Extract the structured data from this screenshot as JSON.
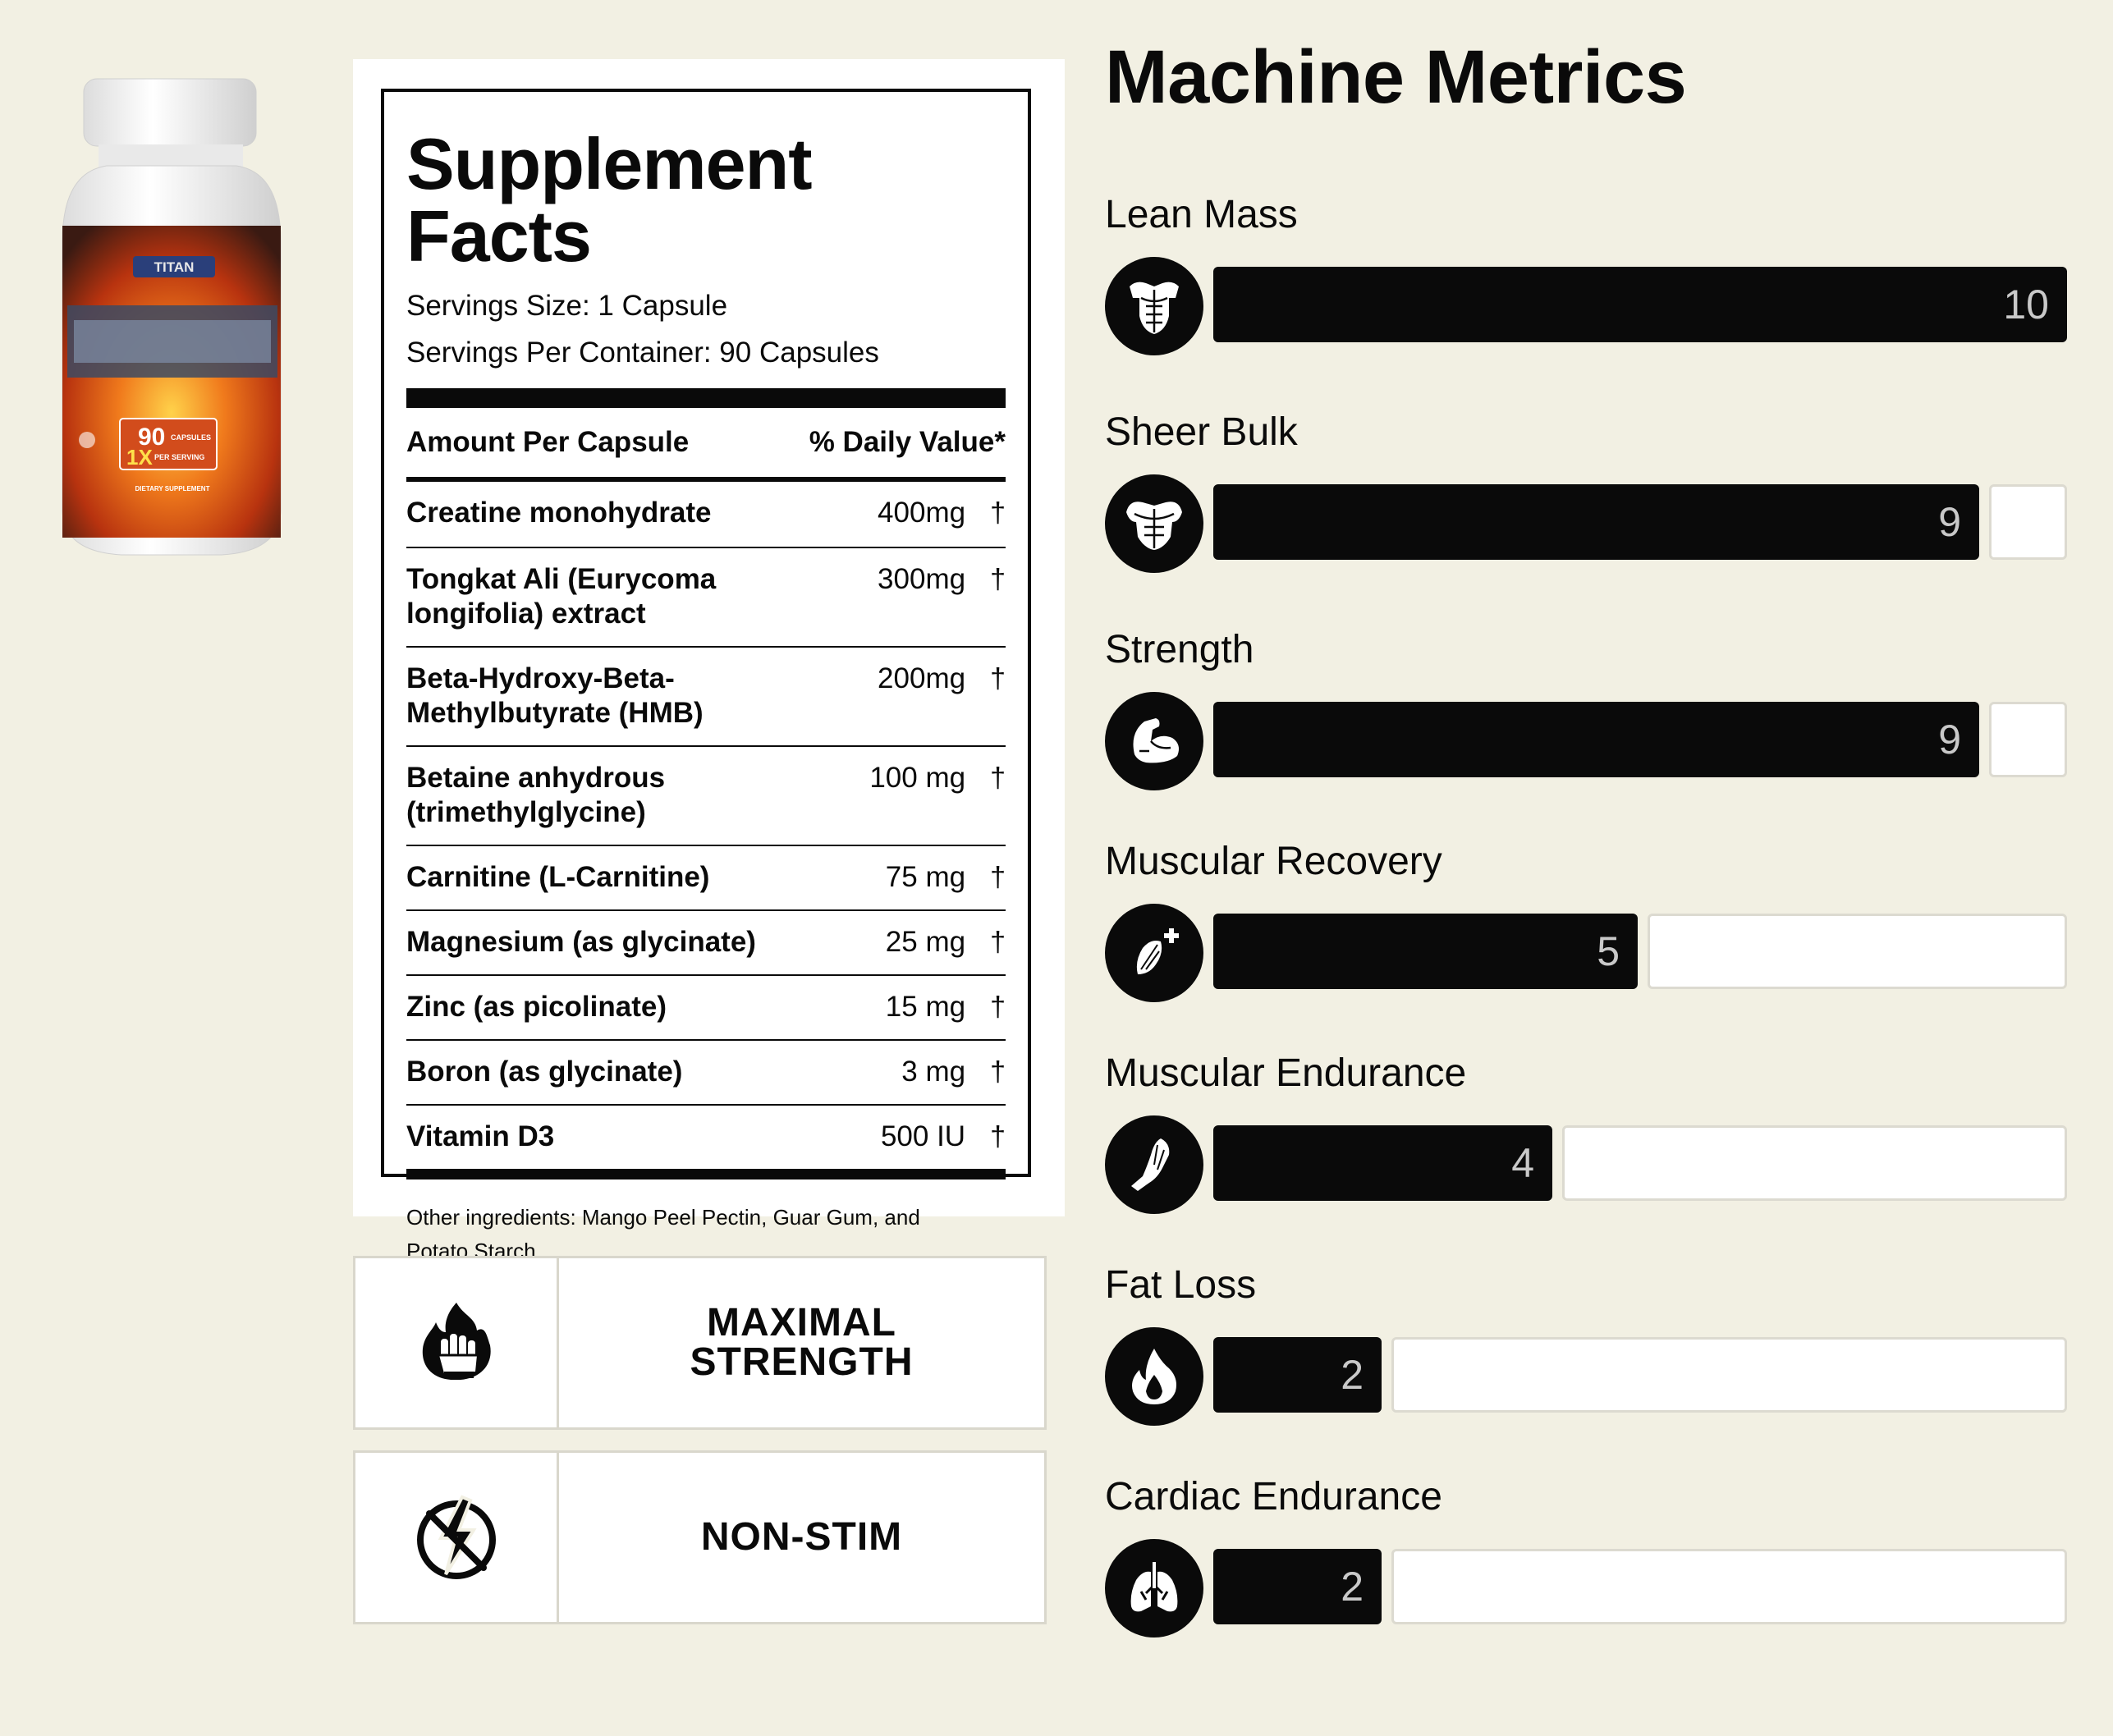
{
  "product": {
    "brand_label": "TITAN",
    "capsule_badge": "90",
    "capsule_badge_unit": "CAPSULES",
    "dose_badge": "1X",
    "dose_badge_unit": "PER SERVING",
    "bottle_footer": "DIETARY SUPPLEMENT"
  },
  "facts": {
    "title": "Supplement Facts",
    "serving_size": "Servings Size: 1 Capsule",
    "servings_per_container": "Servings Per Container: 90 Capsules",
    "col_left": "Amount Per Capsule",
    "col_right": "% Daily Value*",
    "ingredients": [
      {
        "name": "Creatine monohydrate",
        "amount": "400mg",
        "dv": "†"
      },
      {
        "name": "Tongkat Ali (Eurycoma longifolia) extract",
        "amount": "300mg",
        "dv": "†"
      },
      {
        "name": "Beta-Hydroxy-Beta-Methylbutyrate (HMB)",
        "amount": "200mg",
        "dv": "†"
      },
      {
        "name": "Betaine anhydrous (trimethylglycine)",
        "amount": "100 mg",
        "dv": "†"
      },
      {
        "name": "Carnitine (L-Carnitine)",
        "amount": "75 mg",
        "dv": "†"
      },
      {
        "name": "Magnesium (as glycinate)",
        "amount": "25 mg",
        "dv": "†"
      },
      {
        "name": "Zinc (as picolinate)",
        "amount": "15 mg",
        "dv": "†"
      },
      {
        "name": "Boron (as glycinate)",
        "amount": "3 mg",
        "dv": "†"
      },
      {
        "name": "Vitamin D3",
        "amount": "500 IU",
        "dv": "†"
      }
    ],
    "other_ingredients": "Other ingredients: Mango Peel Pectin, Guar Gum, and Potato Starch."
  },
  "features": [
    {
      "label": "MAXIMAL\nSTRENGTH",
      "icon": "fire-fist-icon"
    },
    {
      "label": "NON-STIM",
      "icon": "no-stimulant-icon"
    }
  ],
  "metrics": {
    "title": "Machine Metrics",
    "max": 10,
    "items": [
      {
        "label": "Lean Mass",
        "value": 10,
        "icon": "torso-icon"
      },
      {
        "label": "Sheer Bulk",
        "value": 9,
        "icon": "bulk-torso-icon"
      },
      {
        "label": "Strength",
        "value": 9,
        "icon": "flexed-arm-icon"
      },
      {
        "label": "Muscular Recovery",
        "value": 5,
        "icon": "muscle-plus-icon"
      },
      {
        "label": "Muscular Endurance",
        "value": 4,
        "icon": "leg-muscle-icon"
      },
      {
        "label": "Fat Loss",
        "value": 2,
        "icon": "flame-icon"
      },
      {
        "label": "Cardiac Endurance",
        "value": 2,
        "icon": "lungs-icon"
      }
    ]
  },
  "colors": {
    "background": "#f2f0e3",
    "ink": "#0a0a0a",
    "bar_value_text": "#c9c9c9"
  }
}
